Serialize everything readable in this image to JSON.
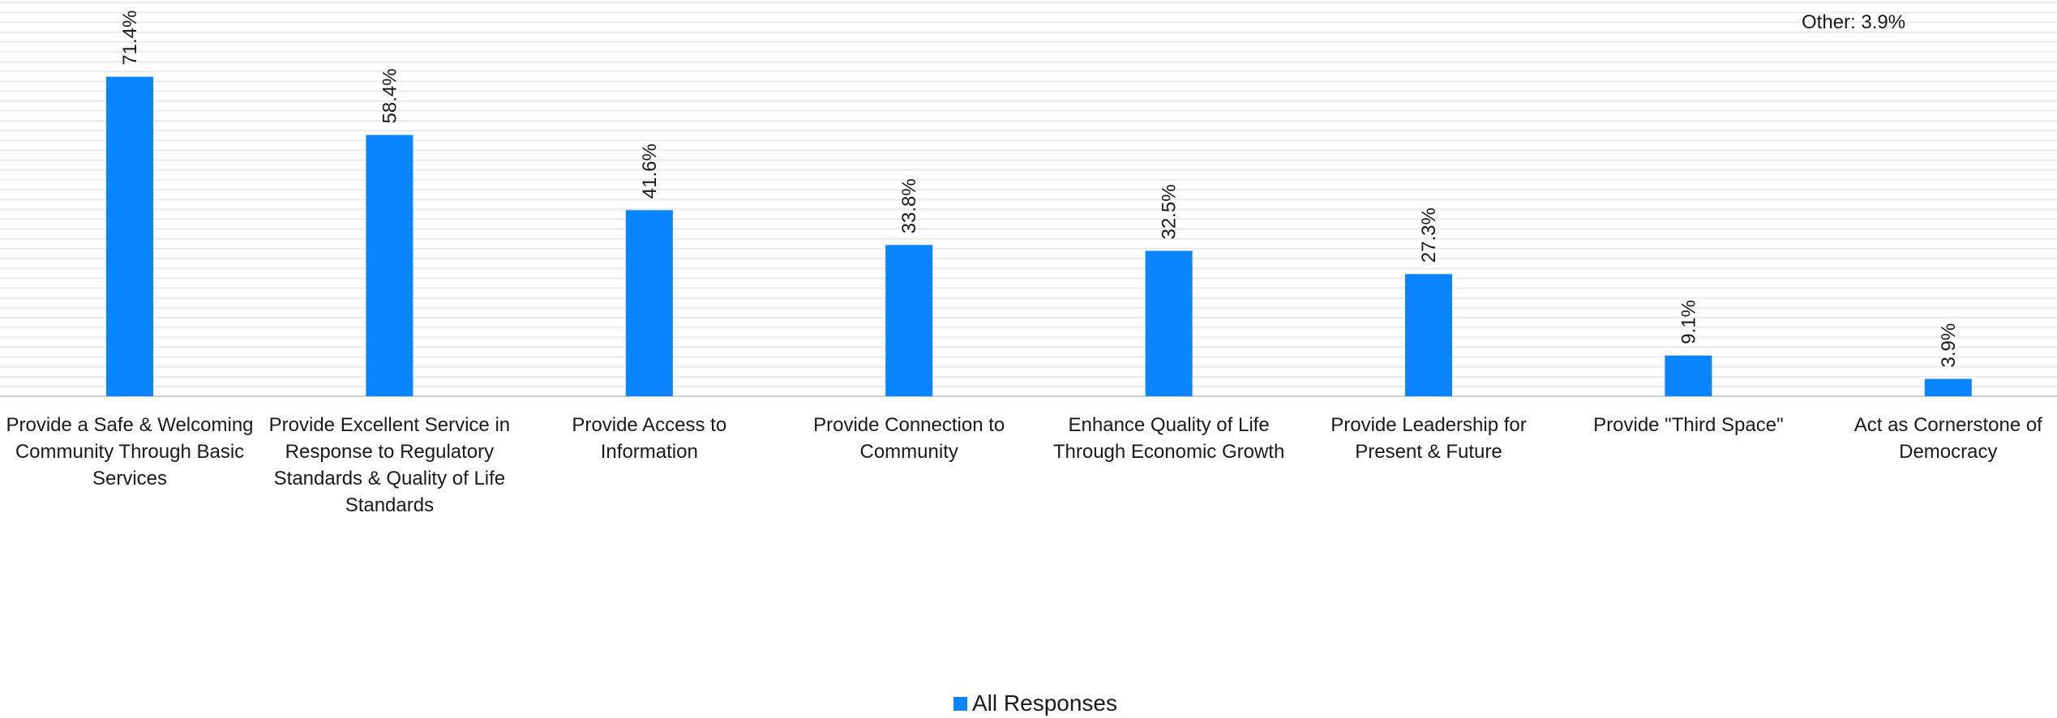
{
  "chart_data": {
    "type": "bar",
    "categories": [
      "Provide a Safe & Welcoming Community Through Basic Services",
      "Provide Excellent Service in Response to Regulatory Standards & Quality of Life Standards",
      "Provide Access to Information",
      "Provide Connection to Community",
      "Enhance Quality of Life Through Economic Growth",
      "Provide Leadership for Present & Future",
      "Provide \"Third Space\"",
      "Act as Cornerstone of Democracy"
    ],
    "category_lines": [
      [
        "Provide a Safe & Welcoming",
        "Community Through Basic",
        "Services"
      ],
      [
        "Provide Excellent Service in",
        "Response to Regulatory",
        "Standards & Quality of Life",
        "Standards"
      ],
      [
        "Provide Access to",
        "Information"
      ],
      [
        "Provide Connection to",
        "Community"
      ],
      [
        "Enhance Quality of Life",
        "Through Economic Growth"
      ],
      [
        "Provide Leadership for",
        "Present & Future"
      ],
      [
        "Provide \"Third Space\""
      ],
      [
        "Act as Cornerstone of",
        "Democracy"
      ]
    ],
    "series": [
      {
        "name": "All Responses",
        "values": [
          71.4,
          58.4,
          41.6,
          33.8,
          32.5,
          27.3,
          9.1,
          3.9
        ],
        "labels": [
          "71.4%",
          "58.4%",
          "41.6%",
          "33.8%",
          "32.5%",
          "27.3%",
          "9.1%",
          "3.9%"
        ]
      }
    ],
    "ylim": [
      0,
      88
    ],
    "grid": true,
    "legend_position": "bottom",
    "bar_color": "#0a84ff",
    "note": "Other: 3.9%"
  }
}
